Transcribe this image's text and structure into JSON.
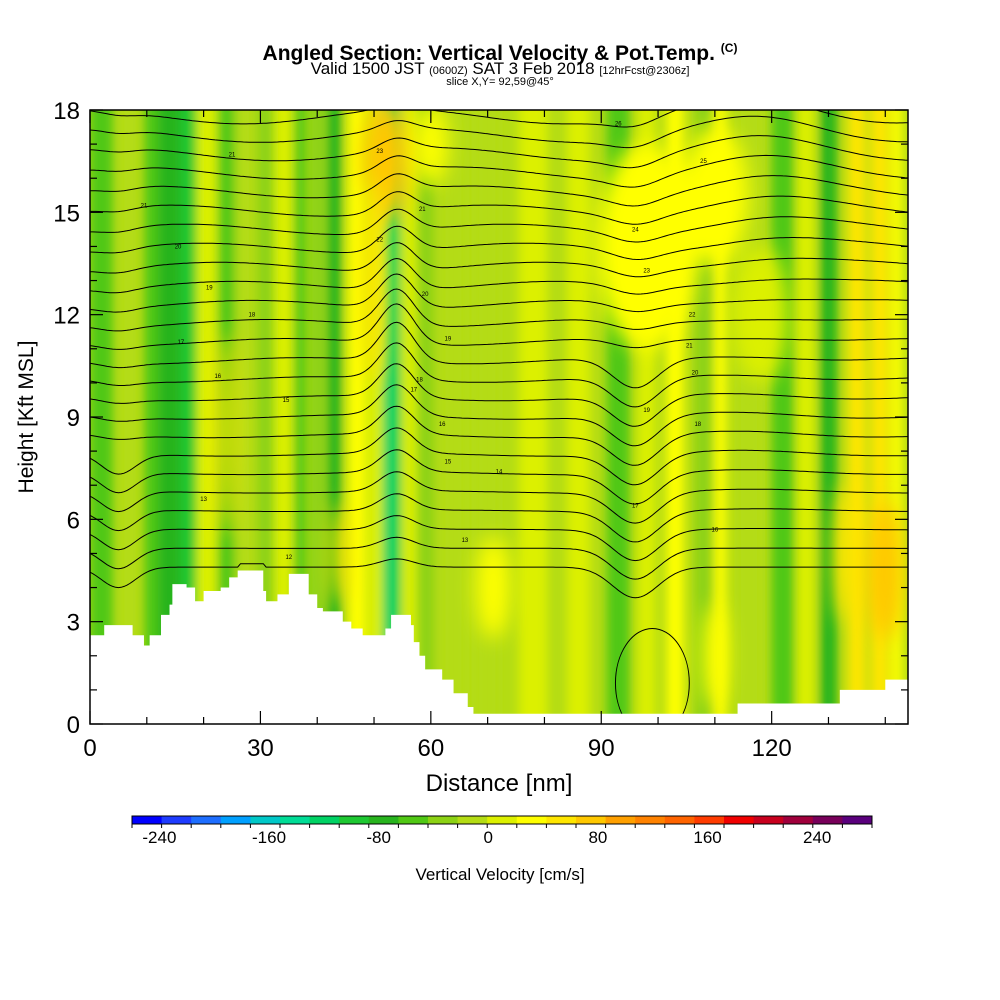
{
  "header": {
    "title": "Angled Section: Vertical Velocity & Pot.Temp.",
    "title_qualifier": "(C)",
    "sub_valid": "Valid 1500 JST",
    "sub_zulu": "(0600Z)",
    "sub_date": "SAT 3 Feb 2018",
    "sub_fcst": "[12hrFcst@2306z]",
    "slice": "slice X,Y= 92,59@45°"
  },
  "chart_data": {
    "type": "heatmap",
    "xlabel": "Distance [nm]",
    "ylabel": "Height [Kft MSL]",
    "xlim": [
      0,
      144
    ],
    "ylim": [
      0,
      18
    ],
    "x_ticks": [
      0,
      30,
      60,
      90,
      120
    ],
    "y_ticks": [
      0,
      3,
      6,
      9,
      12,
      15,
      18
    ],
    "grid": false,
    "colorbar": {
      "label": "Vertical Velocity [cm/s]",
      "min": -260,
      "max": 280,
      "tick_values": [
        -240,
        -160,
        -80,
        0,
        80,
        160,
        240
      ],
      "tick_labels": [
        "-240",
        "-160",
        "-80",
        "0",
        "80",
        "160",
        "240"
      ],
      "colors": [
        "#0000ff",
        "#1e3cff",
        "#1e6eff",
        "#00a0ff",
        "#00c8c8",
        "#00dc96",
        "#00d264",
        "#1ec832",
        "#28b41e",
        "#50c814",
        "#8cd214",
        "#b4dc14",
        "#dcf000",
        "#ffff00",
        "#ffe600",
        "#ffc800",
        "#ffa000",
        "#ff8200",
        "#ff6400",
        "#ff3c00",
        "#f00000",
        "#c8001e",
        "#a0003c",
        "#78005a",
        "#5a007d"
      ]
    },
    "background_velocity_cm_s": -20,
    "velocity_columns": [
      {
        "x": 2,
        "w": 4,
        "v": -55
      },
      {
        "x": 7,
        "w": 3,
        "v": -20
      },
      {
        "x": 11,
        "w": 3,
        "v": -45
      },
      {
        "x": 14,
        "w": 4,
        "v": -70
      },
      {
        "x": 17.5,
        "w": 3,
        "v": -90
      },
      {
        "x": 20.5,
        "w": 3.5,
        "v": 15
      },
      {
        "x": 24,
        "w": 3,
        "v": -65
      },
      {
        "x": 27,
        "w": 3,
        "v": -20
      },
      {
        "x": 31,
        "w": 3,
        "v": -40
      },
      {
        "x": 34,
        "w": 3,
        "v": 5
      },
      {
        "x": 37,
        "w": 2,
        "v": -60
      },
      {
        "x": 40,
        "w": 2.5,
        "v": -40
      },
      {
        "x": 43,
        "w": 2.5,
        "v": -85
      },
      {
        "x": 47,
        "w": 3,
        "v": 40
      },
      {
        "x": 50.5,
        "w": 3,
        "v": 10
      },
      {
        "x": 53,
        "w": 3,
        "v": -120
      },
      {
        "x": 56.5,
        "w": 2.5,
        "v": 20
      },
      {
        "x": 59,
        "w": 3,
        "v": -30
      },
      {
        "x": 64,
        "w": 4,
        "v": -10
      },
      {
        "x": 70,
        "w": 4,
        "v": -15
      },
      {
        "x": 78,
        "w": 5,
        "v": 10
      },
      {
        "x": 86,
        "w": 4,
        "v": 20
      },
      {
        "x": 93,
        "w": 4,
        "v": -45
      },
      {
        "x": 98,
        "w": 3,
        "v": 15
      },
      {
        "x": 103,
        "w": 3,
        "v": 30
      },
      {
        "x": 108,
        "w": 3,
        "v": -40
      },
      {
        "x": 111,
        "w": 2,
        "v": 25
      },
      {
        "x": 116,
        "w": 4,
        "v": -20
      },
      {
        "x": 122,
        "w": 4,
        "v": -55
      },
      {
        "x": 126,
        "w": 3,
        "v": 5
      },
      {
        "x": 130,
        "w": 3,
        "v": -70
      },
      {
        "x": 135,
        "w": 3,
        "v": 45
      },
      {
        "x": 139,
        "w": 3,
        "v": 60
      },
      {
        "x": 142,
        "w": 2,
        "v": 25
      }
    ],
    "velocity_patches": [
      {
        "x": 52,
        "y": 16.5,
        "rx": 4,
        "ry": 1.8,
        "v": 70
      },
      {
        "x": 50,
        "y": 13,
        "rx": 2,
        "ry": 3,
        "v": 60
      },
      {
        "x": 60,
        "y": 17,
        "rx": 3,
        "ry": 1.2,
        "v": 30
      },
      {
        "x": 98,
        "y": 14,
        "rx": 9,
        "ry": 3,
        "v": 25
      },
      {
        "x": 110,
        "y": 15.5,
        "rx": 6,
        "ry": 2,
        "v": 30
      },
      {
        "x": 118,
        "y": 12,
        "rx": 5,
        "ry": 2,
        "v": 15
      },
      {
        "x": 140,
        "y": 4.5,
        "rx": 3,
        "ry": 2,
        "v": 75
      },
      {
        "x": 133,
        "y": 5,
        "rx": 2,
        "ry": 2,
        "v": 50
      },
      {
        "x": 110,
        "y": 2,
        "rx": 2,
        "ry": 1.5,
        "v": 40
      },
      {
        "x": 71,
        "y": 4,
        "rx": 3,
        "ry": 1.5,
        "v": 40
      },
      {
        "x": 44,
        "y": 5,
        "rx": 1.5,
        "ry": 1.5,
        "v": 50
      },
      {
        "x": 24,
        "y": 8.5,
        "rx": 1.5,
        "ry": 3,
        "v": 50
      }
    ],
    "terrain_heights_kft": [
      [
        0,
        2.6
      ],
      [
        2.5,
        2.9
      ],
      [
        7.5,
        2.6
      ],
      [
        9.5,
        2.3
      ],
      [
        10.5,
        2.6
      ],
      [
        12.5,
        3.2
      ],
      [
        14,
        3.5
      ],
      [
        14.5,
        4.1
      ],
      [
        17,
        4.0
      ],
      [
        18.5,
        3.6
      ],
      [
        20,
        3.9
      ],
      [
        23,
        4.0
      ],
      [
        24.5,
        4.3
      ],
      [
        26,
        4.5
      ],
      [
        30.5,
        3.9
      ],
      [
        31,
        3.6
      ],
      [
        33,
        3.8
      ],
      [
        35,
        4.4
      ],
      [
        38.5,
        3.8
      ],
      [
        40,
        3.4
      ],
      [
        41,
        3.3
      ],
      [
        44.5,
        3.0
      ],
      [
        46,
        2.8
      ],
      [
        48,
        2.6
      ],
      [
        52,
        2.8
      ],
      [
        53,
        3.2
      ],
      [
        56.5,
        2.9
      ],
      [
        57,
        2.4
      ],
      [
        58,
        2.0
      ],
      [
        59,
        1.6
      ],
      [
        62,
        1.3
      ],
      [
        64,
        0.9
      ],
      [
        66.5,
        0.5
      ],
      [
        67.5,
        0.3
      ],
      [
        113,
        0.3
      ],
      [
        114,
        0.6
      ],
      [
        128,
        0.6
      ],
      [
        132,
        1.0
      ],
      [
        140,
        1.3
      ],
      [
        144,
        1.3
      ]
    ],
    "theta_contour_labels_c": [
      {
        "x": 25,
        "y": 16.7,
        "text": "21"
      },
      {
        "x": 9.5,
        "y": 15.2,
        "text": "21"
      },
      {
        "x": 15.5,
        "y": 14.0,
        "text": "20"
      },
      {
        "x": 21,
        "y": 12.8,
        "text": "19"
      },
      {
        "x": 28.5,
        "y": 12.0,
        "text": "18"
      },
      {
        "x": 16,
        "y": 11.2,
        "text": "17"
      },
      {
        "x": 22.5,
        "y": 10.2,
        "text": "16"
      },
      {
        "x": 34.5,
        "y": 9.5,
        "text": "15"
      },
      {
        "x": 51,
        "y": 16.8,
        "text": "23"
      },
      {
        "x": 51,
        "y": 14.2,
        "text": "22"
      },
      {
        "x": 58.5,
        "y": 15.1,
        "text": "21"
      },
      {
        "x": 59,
        "y": 12.6,
        "text": "20"
      },
      {
        "x": 63,
        "y": 11.3,
        "text": "19"
      },
      {
        "x": 58,
        "y": 10.1,
        "text": "18"
      },
      {
        "x": 57,
        "y": 9.8,
        "text": "17"
      },
      {
        "x": 62,
        "y": 8.8,
        "text": "16"
      },
      {
        "x": 63,
        "y": 7.7,
        "text": "15"
      },
      {
        "x": 72,
        "y": 7.4,
        "text": "14"
      },
      {
        "x": 66,
        "y": 5.4,
        "text": "13"
      },
      {
        "x": 20,
        "y": 6.6,
        "text": "13"
      },
      {
        "x": 35,
        "y": 4.9,
        "text": "12"
      },
      {
        "x": 93,
        "y": 17.6,
        "text": "26"
      },
      {
        "x": 108,
        "y": 16.5,
        "text": "25"
      },
      {
        "x": 96,
        "y": 14.5,
        "text": "24"
      },
      {
        "x": 98,
        "y": 13.3,
        "text": "23"
      },
      {
        "x": 106,
        "y": 12.0,
        "text": "22"
      },
      {
        "x": 105.5,
        "y": 11.1,
        "text": "21"
      },
      {
        "x": 106.5,
        "y": 10.3,
        "text": "20"
      },
      {
        "x": 98,
        "y": 9.2,
        "text": "19"
      },
      {
        "x": 107,
        "y": 8.8,
        "text": "18"
      },
      {
        "x": 96,
        "y": 6.4,
        "text": "17"
      },
      {
        "x": 110,
        "y": 5.7,
        "text": "16"
      }
    ]
  }
}
